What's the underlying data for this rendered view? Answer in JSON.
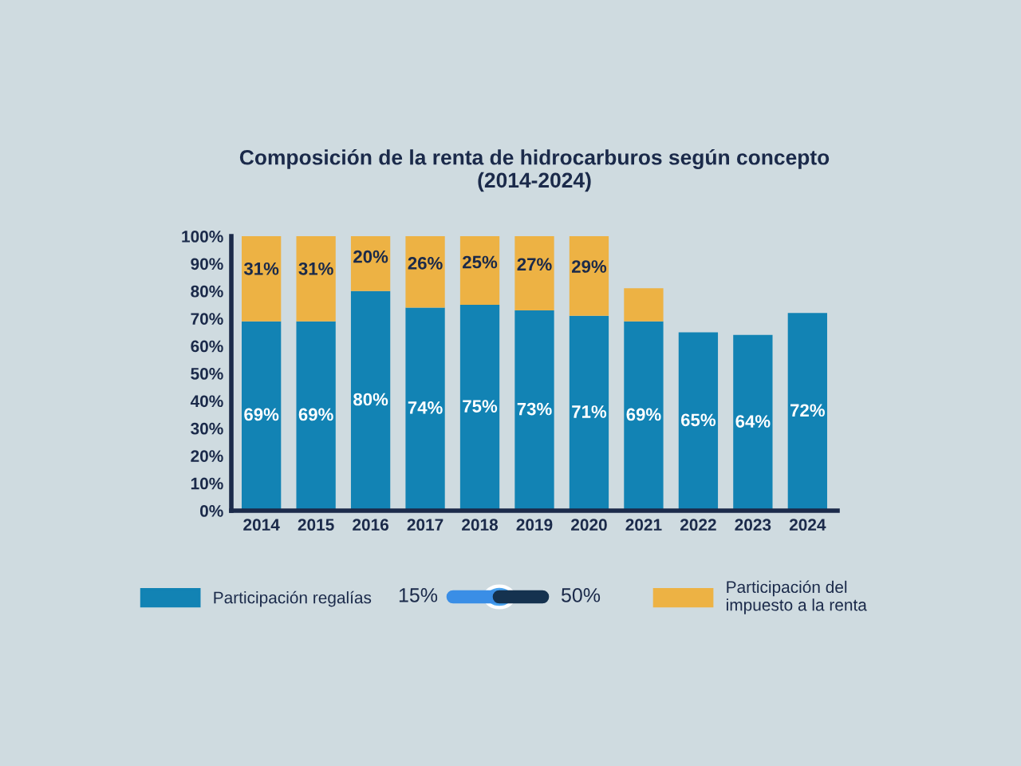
{
  "chart_data": {
    "type": "bar",
    "stacked": true,
    "title": "Composición de la renta de hidrocarburos según concepto\n(2014-2024)",
    "categories": [
      "2014",
      "2015",
      "2016",
      "2017",
      "2018",
      "2019",
      "2020",
      "2021",
      "2022",
      "2023",
      "2024"
    ],
    "series": [
      {
        "name": "Participación regalías",
        "color": "#1283b4",
        "values": [
          69,
          69,
          80,
          74,
          75,
          73,
          71,
          69,
          65,
          64,
          72
        ],
        "value_labels": [
          "69%",
          "69%",
          "80%",
          "74%",
          "75%",
          "73%",
          "71%",
          "69%",
          "65%",
          "64%",
          "72%"
        ]
      },
      {
        "name": "Participación del\nimpuesto a la renta",
        "color": "#edb244",
        "values": [
          31,
          31,
          20,
          26,
          25,
          27,
          29,
          12,
          null,
          null,
          null
        ],
        "value_labels": [
          "31%",
          "31%",
          "20%",
          "26%",
          "25%",
          "27%",
          "29%",
          null,
          null,
          null,
          null
        ]
      }
    ],
    "ylim": [
      0,
      100
    ],
    "yticks": [
      {
        "value": 0,
        "label": "0%"
      },
      {
        "value": 10,
        "label": "10%"
      },
      {
        "value": 20,
        "label": "20%"
      },
      {
        "value": 30,
        "label": "30%"
      },
      {
        "value": 40,
        "label": "40%"
      },
      {
        "value": 50,
        "label": "50%"
      },
      {
        "value": 60,
        "label": "60%"
      },
      {
        "value": 70,
        "label": "70%"
      },
      {
        "value": 80,
        "label": "80%"
      },
      {
        "value": 90,
        "label": "90%"
      },
      {
        "value": 100,
        "label": "100%"
      }
    ],
    "grid": false,
    "legend": "bottom",
    "annotations": [
      "15%",
      "50%"
    ]
  }
}
